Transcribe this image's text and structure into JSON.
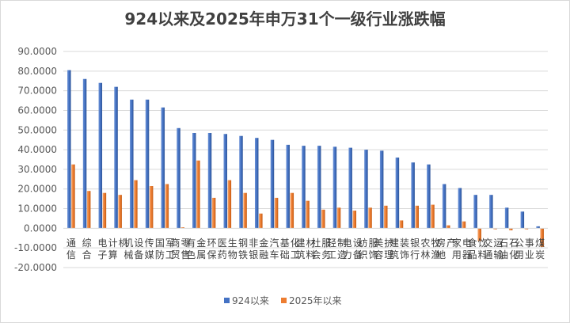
{
  "chart_data": {
    "type": "bar",
    "title": "924以来及2025年申万31个一级行业涨跌幅",
    "ylim": [
      -20,
      90
    ],
    "yticks": [
      "90.0000",
      "80.0000",
      "70.0000",
      "60.0000",
      "50.0000",
      "40.0000",
      "30.0000",
      "20.0000",
      "10.0000",
      "0.0000",
      "-10.0000",
      "-20.0000"
    ],
    "ytick_values": [
      90,
      80,
      70,
      60,
      50,
      40,
      30,
      20,
      10,
      0,
      -10,
      -20
    ],
    "grid": true,
    "legend_position": "bottom",
    "categories": [
      "通信",
      "综合",
      "电子",
      "计算机",
      "机械设备",
      "传媒",
      "国防军工",
      "商贸零售",
      "有色金属",
      "环保",
      "医药生物",
      "钢铁",
      "非银金融",
      "汽车",
      "基础化工",
      "建筑材料",
      "社会服务",
      "轻工制造",
      "电力设备",
      "纺织服饰",
      "美容护理",
      "建筑装饰",
      "银行",
      "农林牧渔",
      "房地产",
      "家用电器",
      "食品饮料",
      "交通运输",
      "石油石化",
      "公用事业",
      "煤炭"
    ],
    "series": [
      {
        "name": "924以来",
        "color": "#4472c4",
        "values": [
          80.5,
          76.0,
          74.0,
          72.0,
          65.5,
          65.5,
          61.5,
          51.0,
          48.5,
          48.5,
          48.0,
          47.0,
          46.0,
          45.0,
          42.5,
          42.0,
          42.0,
          41.5,
          41.0,
          40.0,
          39.5,
          36.0,
          33.5,
          32.5,
          22.5,
          20.5,
          17.0,
          17.0,
          10.5,
          8.5,
          1.0
        ]
      },
      {
        "name": "2025年以来",
        "color": "#ed7d31",
        "values": [
          32.5,
          19.0,
          18.0,
          17.0,
          24.5,
          21.5,
          22.5,
          0.5,
          34.5,
          15.5,
          24.5,
          18.0,
          7.5,
          15.5,
          18.0,
          14.0,
          9.5,
          10.5,
          9.0,
          10.5,
          11.5,
          4.0,
          11.5,
          12.0,
          1.5,
          3.5,
          -6.5,
          -0.5,
          -1.0,
          -0.5,
          -9.5
        ]
      }
    ]
  }
}
